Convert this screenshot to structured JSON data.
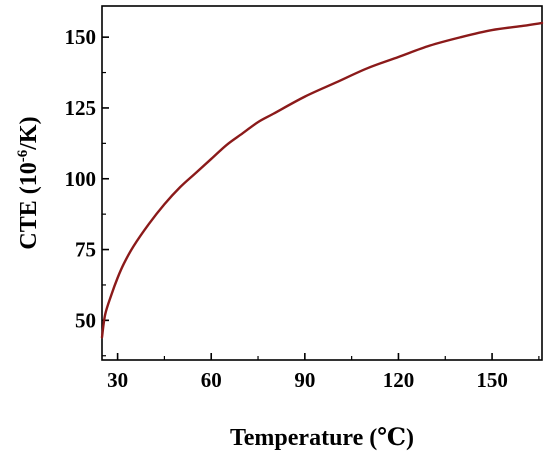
{
  "chart_data": {
    "type": "line",
    "title": "",
    "xlabel": "Temperature (℃)",
    "ylabel": {
      "prefix": "CTE (10",
      "superscript": "-6",
      "suffix": "/K)"
    },
    "xlim": [
      25,
      166
    ],
    "ylim": [
      36,
      161
    ],
    "x_ticks": [
      30,
      60,
      90,
      120,
      150
    ],
    "y_ticks": [
      50,
      75,
      100,
      125,
      150
    ],
    "grid": false,
    "series": [
      {
        "color": "#8b1a1a",
        "x": [
          25,
          26,
          28,
          30,
          32,
          35,
          40,
          45,
          50,
          55,
          60,
          65,
          70,
          75,
          80,
          90,
          100,
          110,
          120,
          130,
          140,
          150,
          160,
          166
        ],
        "y": [
          44,
          52,
          59,
          65,
          70,
          76,
          84,
          91,
          97,
          102,
          107,
          112,
          116,
          120,
          123,
          129,
          134,
          139,
          143,
          147,
          150,
          152.5,
          154,
          155
        ]
      }
    ]
  }
}
